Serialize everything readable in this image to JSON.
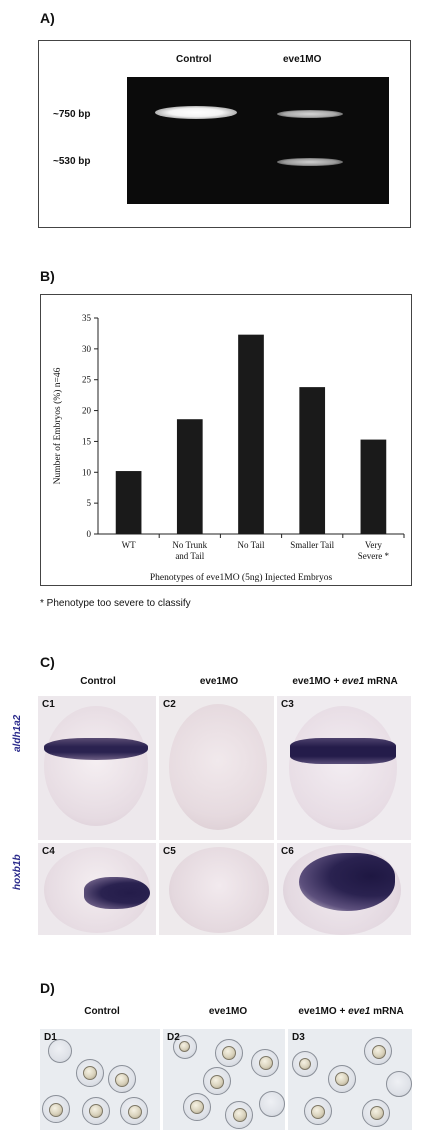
{
  "panel_a": {
    "label": "A)",
    "lanes": [
      "Control",
      "eve1MO"
    ],
    "bands": [
      "~750 bp",
      "~530 bp"
    ]
  },
  "panel_b": {
    "label": "B)",
    "footnote": "*  Phenotype too severe to classify"
  },
  "chart_data": {
    "type": "bar",
    "categories": [
      "WT",
      "No Trunk and Tail",
      "No Tail",
      "Smaller Tail",
      "Very Severe *"
    ],
    "category_lines": [
      [
        "WT"
      ],
      [
        "No Trunk",
        "and Tail"
      ],
      [
        "No Tail"
      ],
      [
        "Smaller Tail"
      ],
      [
        "Very",
        "Severe *"
      ]
    ],
    "values": [
      10.2,
      18.6,
      32.3,
      23.8,
      15.3
    ],
    "xlabel": "Phenotypes of eve1MO (5ng) Injected Embryos",
    "ylabel": "Number of Embryos (%) n=46",
    "ylim": [
      0,
      35
    ],
    "yticks": [
      0,
      5,
      10,
      15,
      20,
      25,
      30,
      35
    ],
    "grid": false,
    "bar_color": "#1a1a1a"
  },
  "panel_c": {
    "label": "C)",
    "columns": [
      "Control",
      "eve1MO",
      "eve1MO + "
    ],
    "col3_italic": "eve1",
    "col3_suffix": " mRNA",
    "genes": [
      "aldh1a2",
      "hoxb1b"
    ],
    "tiles": [
      "C1",
      "C2",
      "C3",
      "C4",
      "C5",
      "C6"
    ]
  },
  "panel_d": {
    "label": "D)",
    "columns": [
      "Control",
      "eve1MO",
      "eve1MO + "
    ],
    "col3_italic": "eve1",
    "col3_suffix": " mRNA",
    "tiles": [
      "D1",
      "D2",
      "D3"
    ]
  },
  "colors": {
    "stain": "#2a2250",
    "embryo_bg": "#ece8ee",
    "gel_bg": "#0b0b0b"
  }
}
